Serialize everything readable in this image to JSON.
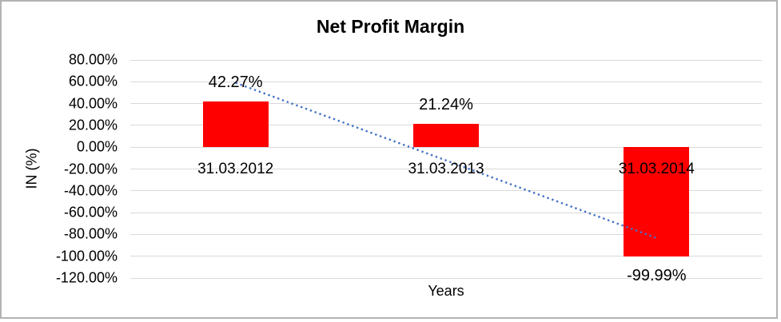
{
  "window": {
    "background_color": "#ffffff",
    "frame_color": "#b3b3b3"
  },
  "chart_data": {
    "type": "bar",
    "title": "Net Profit Margin",
    "xlabel": "Years",
    "ylabel": "IN (%)",
    "categories": [
      "31.03.2012",
      "31.03.2013",
      "31.03.2014"
    ],
    "series": [
      {
        "name": "Net Profit Margin",
        "values": [
          42.27,
          21.24,
          -99.99
        ],
        "data_labels": [
          "42.27%",
          "21.24%",
          "-99.99%"
        ],
        "color": "#ff0000"
      }
    ],
    "ylim": [
      -120,
      80
    ],
    "ytick_step": 20,
    "ytick_labels": [
      "80.00%",
      "60.00%",
      "40.00%",
      "20.00%",
      "0.00%",
      "-20.00%",
      "-40.00%",
      "-60.00%",
      "-80.00%",
      "-100.00%",
      "-120.00%"
    ],
    "grid": true,
    "gridline_color": "#d9d9d9",
    "legend": "none",
    "text_color": "#000000",
    "trendline": {
      "type": "linear",
      "style": "dotted",
      "color": "#4472c4",
      "point_values": [
        59.03,
        -12.16,
        -83.29
      ]
    }
  }
}
